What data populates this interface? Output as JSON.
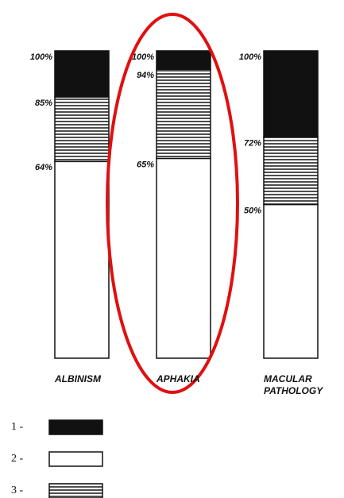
{
  "chart_data": {
    "type": "stacked_bar",
    "categories": [
      "ALBINISM",
      "APHAKIA",
      "MACULAR PATHOLOGY"
    ],
    "series": [
      {
        "name": "2 -",
        "color": "#ffffff",
        "values": [
          64,
          65,
          50
        ]
      },
      {
        "name": "3 -",
        "color": "#333333",
        "hatch": true,
        "values": [
          21,
          29,
          22
        ]
      },
      {
        "name": "1 -",
        "color": "#111111",
        "values": [
          15,
          6,
          28
        ]
      }
    ],
    "level_labels": [
      [
        {
          "value": 100,
          "label": "100%"
        },
        {
          "value": 85,
          "label": "85%"
        },
        {
          "value": 64,
          "label": "64%"
        }
      ],
      [
        {
          "value": 100,
          "label": "100%"
        },
        {
          "value": 94,
          "label": "94%"
        },
        {
          "value": 65,
          "label": "65%"
        }
      ],
      [
        {
          "value": 100,
          "label": "100%"
        },
        {
          "value": 72,
          "label": "72%"
        },
        {
          "value": 50,
          "label": "50%"
        }
      ]
    ],
    "ylim": [
      0,
      100
    ]
  }
}
